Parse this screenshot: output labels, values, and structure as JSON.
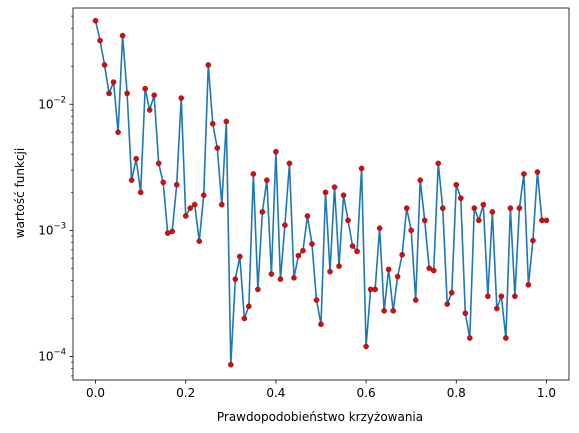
{
  "chart_data": {
    "type": "line",
    "title": "",
    "xlabel": "Prawdopodobieństwo krzyżowania",
    "ylabel": "wartość funkcji",
    "xlim": [
      -0.05,
      1.05
    ],
    "ylim": [
      6.5e-05,
      0.058
    ],
    "yscale": "log",
    "grid": false,
    "x_ticks": [
      0.0,
      0.2,
      0.4,
      0.6,
      0.8,
      1.0
    ],
    "x_tick_labels": [
      "0.0",
      "0.2",
      "0.4",
      "0.6",
      "0.8",
      "1.0"
    ],
    "y_ticks": [
      0.0001,
      0.001,
      0.01
    ],
    "y_tick_labels": [
      {
        "base": "10",
        "exp": "−4"
      },
      {
        "base": "10",
        "exp": "−3"
      },
      {
        "base": "10",
        "exp": "−2"
      }
    ],
    "line_color": "#1f77b4",
    "marker_color": "#cc1111",
    "series": [
      {
        "x": [
          0.0,
          0.01,
          0.02,
          0.03,
          0.04,
          0.05,
          0.06,
          0.07,
          0.08,
          0.09,
          0.1,
          0.11,
          0.12,
          0.13,
          0.14,
          0.15,
          0.16,
          0.17,
          0.18,
          0.19,
          0.2,
          0.21,
          0.22,
          0.23,
          0.24,
          0.25,
          0.26,
          0.27,
          0.28,
          0.29,
          0.3,
          0.31,
          0.32,
          0.33,
          0.34,
          0.35,
          0.36,
          0.37,
          0.38,
          0.39,
          0.4,
          0.41,
          0.42,
          0.43,
          0.44,
          0.45,
          0.46,
          0.47,
          0.48,
          0.49,
          0.5,
          0.51,
          0.52,
          0.53,
          0.54,
          0.55,
          0.56,
          0.57,
          0.58,
          0.59,
          0.6,
          0.61,
          0.62,
          0.63,
          0.64,
          0.65,
          0.66,
          0.67,
          0.68,
          0.69,
          0.7,
          0.71,
          0.72,
          0.73,
          0.74,
          0.75,
          0.76,
          0.77,
          0.78,
          0.79,
          0.8,
          0.81,
          0.82,
          0.83,
          0.84,
          0.85,
          0.86,
          0.87,
          0.88,
          0.89,
          0.9,
          0.91,
          0.92,
          0.93,
          0.94,
          0.95,
          0.96,
          0.97,
          0.98,
          0.99,
          1.0
        ],
        "y": [
          0.046,
          0.032,
          0.0205,
          0.0122,
          0.015,
          0.006,
          0.035,
          0.0122,
          0.0025,
          0.0037,
          0.002,
          0.0133,
          0.009,
          0.0118,
          0.0034,
          0.0024,
          0.00095,
          0.00098,
          0.0023,
          0.0112,
          0.0013,
          0.0015,
          0.0016,
          0.00082,
          0.0019,
          0.0205,
          0.007,
          0.0045,
          0.0016,
          0.0073,
          8.6e-05,
          0.00041,
          0.00062,
          0.0002,
          0.00025,
          0.0028,
          0.00034,
          0.0014,
          0.0025,
          0.00045,
          0.0042,
          0.00041,
          0.0011,
          0.0034,
          0.00042,
          0.00063,
          0.00069,
          0.0013,
          0.00078,
          0.00028,
          0.00018,
          0.002,
          0.00047,
          0.0022,
          0.00052,
          0.0019,
          0.0012,
          0.00075,
          0.00068,
          0.0031,
          0.00012,
          0.00034,
          0.00034,
          0.00104,
          0.00023,
          0.00049,
          0.00023,
          0.00043,
          0.00064,
          0.0015,
          0.001,
          0.00028,
          0.0025,
          0.0012,
          0.0005,
          0.00048,
          0.0034,
          0.0015,
          0.00026,
          0.00032,
          0.0023,
          0.0018,
          0.00022,
          0.00014,
          0.0015,
          0.0012,
          0.0016,
          0.0003,
          0.0014,
          0.00024,
          0.0003,
          0.00014,
          0.0015,
          0.0003,
          0.0015,
          0.0028,
          0.00037,
          0.00083,
          0.0029,
          0.0012,
          0.0012
        ]
      }
    ]
  }
}
